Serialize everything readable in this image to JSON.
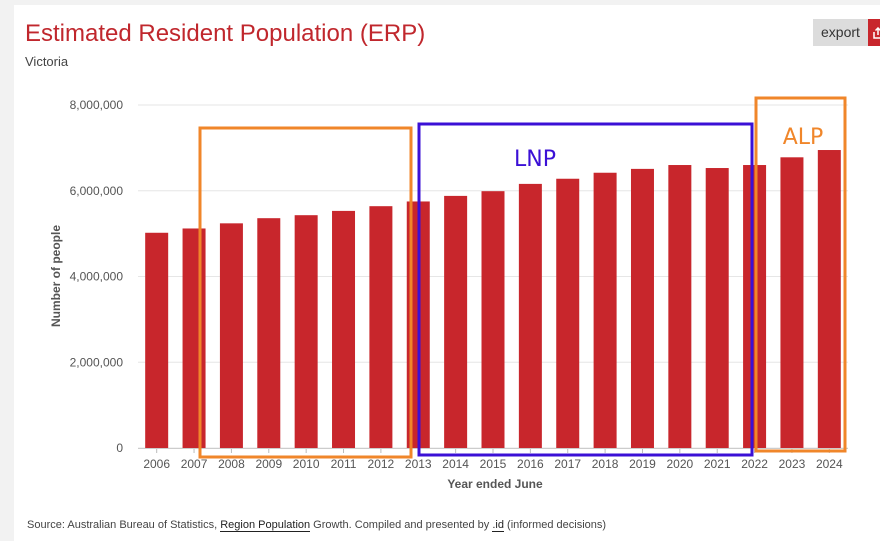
{
  "header": {
    "title": "Estimated Resident Population (ERP)",
    "subtitle": "Victoria",
    "export_label": "export"
  },
  "source": {
    "prefix": "Source: Australian Bureau of Statistics, ",
    "link1": "Region Population",
    "middle": " Growth. Compiled and presented by ",
    "link2": ".id",
    "suffix": " (informed decisions)"
  },
  "colors": {
    "bar": "#c8262c",
    "title": "#c0272d",
    "lnk_box": "#3b10d6",
    "alp_box": "#f0862a",
    "grid": "#e6e6e6"
  },
  "chart_data": {
    "type": "bar",
    "xlabel": "Year ended June",
    "ylabel": "Number of people",
    "ylim": [
      0,
      8000000
    ],
    "yticks": [
      0,
      2000000,
      4000000,
      6000000,
      8000000
    ],
    "ytick_labels": [
      "0",
      "2,000,000",
      "4,000,000",
      "6,000,000",
      "8,000,000"
    ],
    "grid": true,
    "categories": [
      "2006",
      "2007",
      "2008",
      "2009",
      "2010",
      "2011",
      "2012",
      "2013",
      "2014",
      "2015",
      "2016",
      "2017",
      "2018",
      "2019",
      "2020",
      "2021",
      "2022",
      "2023",
      "2024"
    ],
    "values": [
      5020000,
      5120000,
      5240000,
      5360000,
      5430000,
      5530000,
      5640000,
      5750000,
      5880000,
      5990000,
      6160000,
      6280000,
      6420000,
      6510000,
      6600000,
      6530000,
      6600000,
      6780000,
      6950000
    ],
    "annotations": [
      {
        "label": "",
        "color": "orange",
        "from": "2007",
        "to": "2013"
      },
      {
        "label": "LNP",
        "color": "blue",
        "from": "2013",
        "to": "2022"
      },
      {
        "label": "ALP",
        "color": "orange",
        "from": "2022",
        "to": "2024"
      }
    ]
  }
}
